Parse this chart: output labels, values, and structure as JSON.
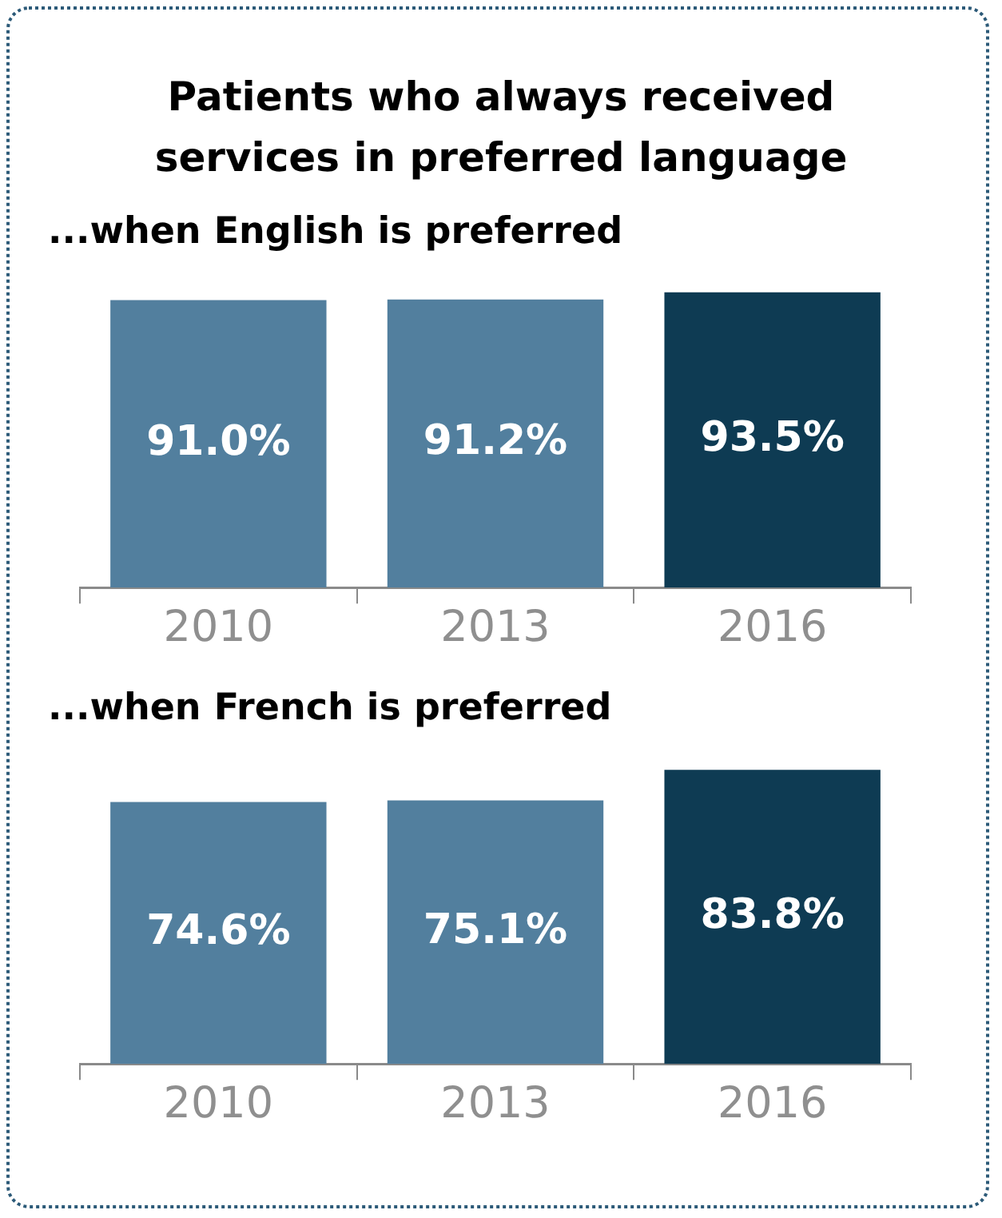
{
  "chart_data": [
    {
      "type": "bar",
      "title": "Patients who always received services in preferred language",
      "subtitle": "...when English is preferred",
      "categories": [
        "2010",
        "2013",
        "2016"
      ],
      "values": [
        91.0,
        91.2,
        93.5
      ],
      "colors": [
        "#527f9e",
        "#527f9e",
        "#0e3b53"
      ],
      "value_labels": [
        "91.0%",
        "91.2%",
        "93.5%"
      ]
    },
    {
      "type": "bar",
      "subtitle": "...when French is preferred",
      "categories": [
        "2010",
        "2013",
        "2016"
      ],
      "values": [
        74.6,
        75.1,
        83.8
      ],
      "colors": [
        "#527f9e",
        "#527f9e",
        "#0e3b53"
      ],
      "value_labels": [
        "74.6%",
        "75.1%",
        "83.8%"
      ]
    }
  ]
}
